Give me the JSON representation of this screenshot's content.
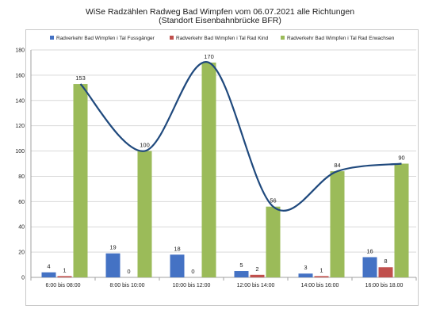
{
  "title_line1": "WiSe Radzählen Radweg Bad Wimpfen vom 06.07.2021  alle Richtungen",
  "title_line2": "(Standort Eisenbahnbrücke BFR)",
  "chart_data": {
    "type": "bar",
    "categories": [
      "6:00 bis 08:00",
      "8:00 bis 10:00",
      "10:00 bis 12:00",
      "12:00 bis 14:00",
      "14:00 bis 16:00",
      "16:00 bis 18.00"
    ],
    "series": [
      {
        "name": "Radverkehr Bad Wimpfen i Tal Fussgänger",
        "color": "#4472c4",
        "values": [
          4,
          19,
          18,
          5,
          3,
          16
        ],
        "labels": [
          "4",
          "19",
          "18",
          "5",
          "3",
          "16"
        ]
      },
      {
        "name": "Radverkehr Bad Wimpfen i Tal Rad Kind",
        "color": "#c0504d",
        "values": [
          1,
          0,
          0,
          2,
          1,
          8
        ],
        "labels": [
          "1",
          "0",
          "0",
          "2",
          "1",
          "8"
        ]
      },
      {
        "name": "Radverkehr Bad Wimpfen i Tal Rad Erwachsen",
        "color": "#9bbb59",
        "values": [
          153,
          100,
          170,
          56,
          84,
          90
        ],
        "labels": [
          "153",
          "100",
          "170",
          "56",
          "84",
          "90"
        ]
      }
    ],
    "trendline": {
      "series": "Radverkehr Bad Wimpfen i Tal Rad Erwachsen",
      "color": "#1f497d",
      "smooth": true
    },
    "y_ticks": [
      "0",
      "20",
      "40",
      "60",
      "80",
      "100",
      "120",
      "140",
      "160",
      "180"
    ],
    "ylim": [
      0,
      180
    ],
    "grid": true,
    "legend_position": "top",
    "xlabel": "",
    "ylabel": ""
  }
}
